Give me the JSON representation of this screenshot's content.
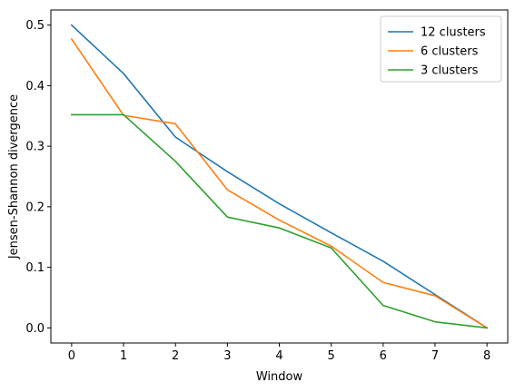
{
  "chart_data": {
    "type": "line",
    "title": "",
    "xlabel": "Window",
    "ylabel": "Jensen-Shannon divergence",
    "x": [
      0,
      1,
      2,
      3,
      4,
      5,
      6,
      7,
      8
    ],
    "xlim": [
      -0.4,
      8.4
    ],
    "ylim": [
      -0.025,
      0.525
    ],
    "xticks": [
      0,
      1,
      2,
      3,
      4,
      5,
      6,
      7,
      8
    ],
    "yticks": [
      0.0,
      0.1,
      0.2,
      0.3,
      0.4,
      0.5
    ],
    "ytick_labels": [
      "0.0",
      "0.1",
      "0.2",
      "0.3",
      "0.4",
      "0.5"
    ],
    "grid": false,
    "legend_position": "top-right",
    "series": [
      {
        "name": "12 clusters",
        "color": "#1f77b4",
        "values": [
          0.5,
          0.42,
          0.315,
          0.258,
          0.205,
          0.157,
          0.11,
          0.055,
          0.0
        ]
      },
      {
        "name": "6 clusters",
        "color": "#ff7f0e",
        "values": [
          0.477,
          0.351,
          0.337,
          0.228,
          0.178,
          0.135,
          0.075,
          0.053,
          0.0
        ]
      },
      {
        "name": "3 clusters",
        "color": "#2ca02c",
        "values": [
          0.352,
          0.352,
          0.275,
          0.183,
          0.165,
          0.132,
          0.037,
          0.01,
          0.0
        ]
      }
    ]
  }
}
